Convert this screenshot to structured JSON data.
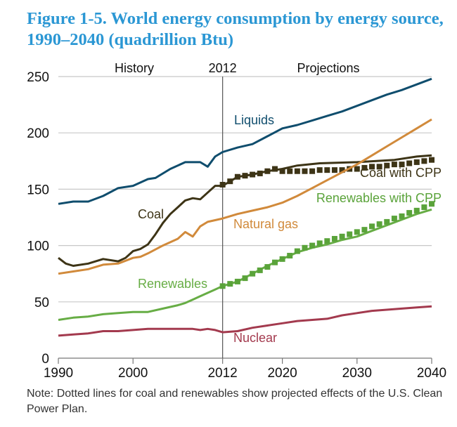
{
  "chart_data": {
    "type": "line",
    "title": "Figure 1-5. World energy consumption by energy source, 1990–2040 (quadrillion Btu)",
    "note": "Note: Dotted lines for coal and renewables show projected effects of the U.S. Clean Power Plan.",
    "header_labels": {
      "history": "History",
      "divider": "2012",
      "projections": "Projections"
    },
    "divider_year": 2012,
    "xlim": [
      1990,
      2040
    ],
    "ylim": [
      0,
      250
    ],
    "x_ticks": [
      1990,
      2000,
      2012,
      2020,
      2030,
      2040
    ],
    "y_ticks": [
      0,
      50,
      100,
      150,
      200,
      250
    ],
    "grid": "horizontal",
    "series": [
      {
        "name": "Liquids",
        "color": "#0f4d6d",
        "style": "solid",
        "x": [
          1990,
          1992,
          1994,
          1996,
          1998,
          2000,
          2002,
          2003,
          2005,
          2007,
          2009,
          2010,
          2011,
          2012,
          2014,
          2016,
          2018,
          2020,
          2022,
          2024,
          2026,
          2028,
          2030,
          2032,
          2034,
          2036,
          2038,
          2040
        ],
        "y": [
          137,
          139,
          139,
          144,
          151,
          153,
          159,
          160,
          168,
          174,
          174,
          170,
          179,
          183,
          187,
          190,
          197,
          204,
          207,
          211,
          215,
          219,
          224,
          229,
          234,
          238,
          243,
          248
        ]
      },
      {
        "name": "Coal",
        "color": "#3d3416",
        "style": "solid",
        "x": [
          1990,
          1991,
          1992,
          1994,
          1996,
          1998,
          1999,
          2000,
          2001,
          2002,
          2003,
          2004,
          2005,
          2006,
          2007,
          2008,
          2009,
          2010,
          2011,
          2012,
          2014,
          2016,
          2018,
          2020,
          2022,
          2025,
          2030,
          2035,
          2038,
          2040
        ],
        "y": [
          89,
          84,
          82,
          84,
          88,
          86,
          89,
          95,
          97,
          101,
          110,
          120,
          128,
          134,
          140,
          142,
          141,
          147,
          153,
          153,
          161,
          163,
          166,
          168,
          171,
          173,
          174,
          176,
          179,
          180
        ]
      },
      {
        "name": "Coal with CPP",
        "color": "#3d3416",
        "style": "markers",
        "x": [
          2012,
          2013,
          2014,
          2015,
          2016,
          2017,
          2018,
          2019,
          2020,
          2021,
          2022,
          2023,
          2024,
          2025,
          2026,
          2027,
          2028,
          2029,
          2030,
          2031,
          2032,
          2033,
          2034,
          2035,
          2036,
          2037,
          2038,
          2039,
          2040
        ],
        "y": [
          154,
          157,
          161,
          162,
          163,
          164,
          166,
          168,
          166,
          166,
          166,
          166,
          166,
          167,
          167,
          167,
          167,
          168,
          168,
          169,
          170,
          170,
          171,
          172,
          172,
          173,
          174,
          175,
          176
        ]
      },
      {
        "name": "Natural gas",
        "color": "#d18a3b",
        "style": "solid",
        "x": [
          1990,
          1992,
          1994,
          1996,
          1998,
          2000,
          2001,
          2002,
          2004,
          2006,
          2007,
          2008,
          2009,
          2010,
          2012,
          2014,
          2016,
          2018,
          2020,
          2022,
          2024,
          2026,
          2028,
          2030,
          2032,
          2034,
          2036,
          2038,
          2040
        ],
        "y": [
          75,
          77,
          79,
          83,
          84,
          89,
          90,
          93,
          100,
          106,
          112,
          108,
          117,
          121,
          124,
          128,
          131,
          134,
          138,
          144,
          151,
          158,
          165,
          172,
          180,
          188,
          196,
          204,
          212
        ]
      },
      {
        "name": "Renewables",
        "color": "#67ad45",
        "style": "solid",
        "x": [
          1990,
          1992,
          1994,
          1996,
          1998,
          2000,
          2002,
          2004,
          2006,
          2007,
          2008,
          2009,
          2010,
          2011,
          2012,
          2014,
          2016,
          2018,
          2020,
          2022,
          2024,
          2026,
          2028,
          2030,
          2032,
          2034,
          2036,
          2038,
          2040
        ],
        "y": [
          34,
          36,
          37,
          39,
          40,
          41,
          41,
          44,
          47,
          49,
          52,
          55,
          58,
          61,
          64,
          68,
          75,
          82,
          88,
          94,
          98,
          101,
          105,
          108,
          113,
          118,
          123,
          128,
          132
        ]
      },
      {
        "name": "Renewables with CPP",
        "color": "#5aa33a",
        "style": "markers",
        "x": [
          2012,
          2013,
          2014,
          2015,
          2016,
          2017,
          2018,
          2019,
          2020,
          2021,
          2022,
          2023,
          2024,
          2025,
          2026,
          2027,
          2028,
          2029,
          2030,
          2031,
          2032,
          2033,
          2034,
          2035,
          2036,
          2037,
          2038,
          2039,
          2040
        ],
        "y": [
          64,
          66,
          68,
          71,
          75,
          78,
          81,
          85,
          88,
          91,
          95,
          98,
          100,
          102,
          104,
          106,
          108,
          110,
          112,
          114,
          117,
          119,
          121,
          124,
          126,
          129,
          131,
          134,
          137
        ]
      },
      {
        "name": "Nuclear",
        "color": "#a33a4e",
        "style": "solid",
        "x": [
          1990,
          1992,
          1994,
          1996,
          1998,
          2000,
          2002,
          2004,
          2006,
          2008,
          2009,
          2010,
          2011,
          2012,
          2014,
          2016,
          2018,
          2020,
          2022,
          2024,
          2026,
          2028,
          2030,
          2032,
          2034,
          2036,
          2038,
          2040
        ],
        "y": [
          20,
          21,
          22,
          24,
          24,
          25,
          26,
          26,
          26,
          26,
          25,
          26,
          25,
          23,
          24,
          27,
          29,
          31,
          33,
          34,
          35,
          38,
          40,
          42,
          43,
          44,
          45,
          46
        ]
      }
    ]
  }
}
